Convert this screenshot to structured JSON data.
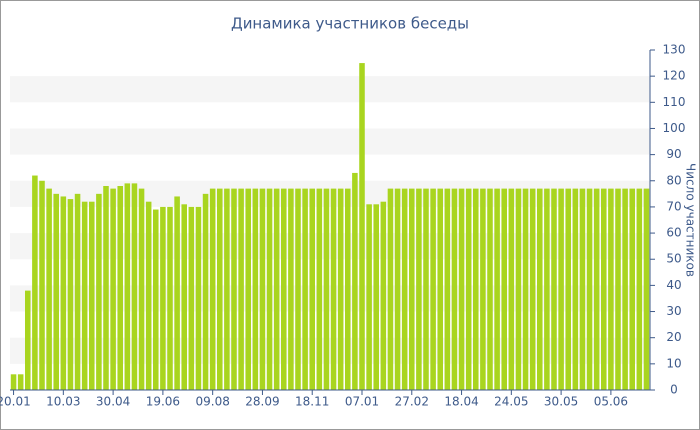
{
  "chart_data": {
    "type": "bar",
    "title": "Динамика участников беседы",
    "y_axis_label": "Число участников",
    "categories": [
      "20.01",
      null,
      null,
      null,
      null,
      null,
      null,
      "10.03",
      null,
      null,
      null,
      null,
      null,
      null,
      "30.04",
      null,
      null,
      null,
      null,
      null,
      null,
      "19.06",
      null,
      null,
      null,
      null,
      null,
      null,
      "09.08",
      null,
      null,
      null,
      null,
      null,
      null,
      "28.09",
      null,
      null,
      null,
      null,
      null,
      null,
      "18.11",
      null,
      null,
      null,
      null,
      null,
      null,
      "07.01",
      null,
      null,
      null,
      null,
      null,
      null,
      "27.02",
      null,
      null,
      null,
      null,
      null,
      null,
      "18.04",
      null,
      null,
      null,
      null,
      null,
      null,
      "24.05",
      null,
      null,
      null,
      null,
      null,
      null,
      "30.05",
      null,
      null,
      null,
      null,
      null,
      null,
      "05.06",
      null,
      null,
      null,
      null,
      null
    ],
    "values": [
      6,
      6,
      38,
      82,
      80,
      77,
      75,
      74,
      73,
      75,
      72,
      72,
      75,
      78,
      77,
      78,
      79,
      79,
      77,
      72,
      69,
      70,
      70,
      74,
      71,
      70,
      70,
      75,
      77,
      77,
      77,
      77,
      77,
      77,
      77,
      77,
      77,
      77,
      77,
      77,
      77,
      77,
      77,
      77,
      77,
      77,
      77,
      77,
      83,
      125,
      71,
      71,
      72,
      77,
      77,
      77,
      77,
      77,
      77,
      77,
      77,
      77,
      77,
      77,
      77,
      77,
      77,
      77,
      77,
      77,
      77,
      77,
      77,
      77,
      77,
      77,
      77,
      77,
      77,
      77,
      77,
      77,
      77,
      77,
      77,
      77,
      77,
      77,
      77,
      77
    ],
    "color": "#a9d51f",
    "ylim": [
      0,
      130
    ],
    "yticks": [
      0,
      10,
      20,
      30,
      40,
      50,
      60,
      70,
      80,
      90,
      100,
      110,
      120,
      130
    ],
    "grid": "bands",
    "y_axis_side": "right"
  }
}
